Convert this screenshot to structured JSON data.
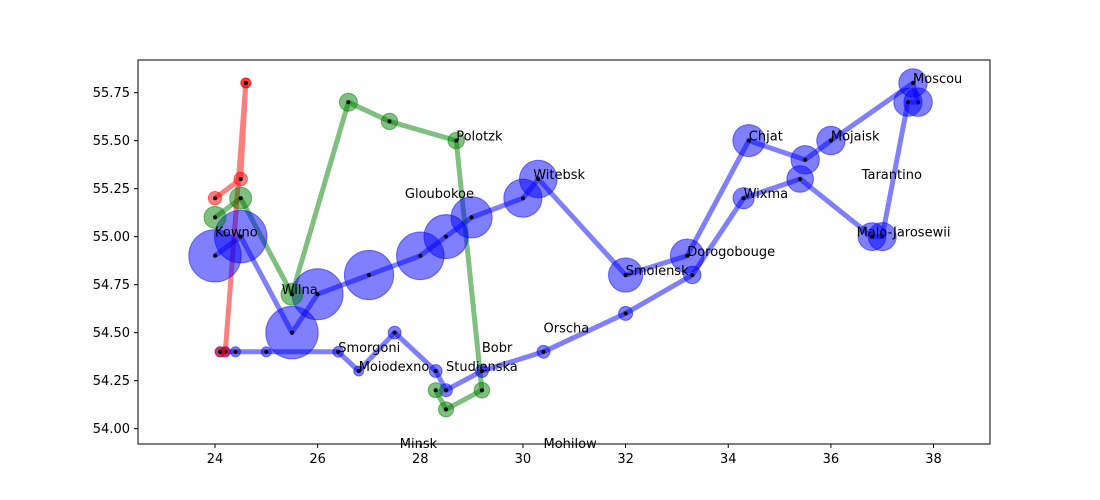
{
  "chart_data": {
    "type": "scatter",
    "xlim": [
      22.5,
      39.1
    ],
    "ylim": [
      53.92,
      55.92
    ],
    "grid": false,
    "legend": "none",
    "x_ticks": [
      24,
      26,
      28,
      30,
      32,
      34,
      36,
      38
    ],
    "y_ticks": [
      54.0,
      54.25,
      54.5,
      54.75,
      55.0,
      55.25,
      55.5,
      55.75
    ],
    "x_tick_labels": [
      "24",
      "26",
      "28",
      "30",
      "32",
      "34",
      "36",
      "38"
    ],
    "y_tick_labels": [
      "54.00",
      "54.25",
      "54.50",
      "54.75",
      "55.00",
      "55.25",
      "55.50",
      "55.75"
    ],
    "series": [
      {
        "color": "#0000ff",
        "points": [
          [
            24.0,
            54.9,
            340000
          ],
          [
            24.5,
            55.0,
            340000
          ],
          [
            25.5,
            54.5,
            340000
          ],
          [
            26.0,
            54.7,
            320000
          ],
          [
            27.0,
            54.8,
            300000
          ],
          [
            28.0,
            54.9,
            280000
          ],
          [
            28.5,
            55.0,
            240000
          ],
          [
            29.0,
            55.1,
            210000
          ],
          [
            30.0,
            55.2,
            180000
          ],
          [
            30.3,
            55.3,
            175000
          ],
          [
            32.0,
            54.8,
            145000
          ],
          [
            33.2,
            54.9,
            140000
          ],
          [
            34.4,
            55.5,
            127100
          ],
          [
            35.5,
            55.4,
            100000
          ],
          [
            36.0,
            55.5,
            100000
          ],
          [
            37.6,
            55.8,
            100000
          ],
          [
            37.7,
            55.7,
            100000
          ],
          [
            37.5,
            55.7,
            98000
          ],
          [
            37.0,
            55.0,
            97000
          ],
          [
            36.8,
            55.0,
            96000
          ],
          [
            35.4,
            55.3,
            87000
          ],
          [
            34.3,
            55.2,
            55000
          ],
          [
            33.3,
            54.8,
            37000
          ],
          [
            32.0,
            54.6,
            24000
          ],
          [
            30.4,
            54.4,
            20000
          ],
          [
            29.2,
            54.3,
            20000
          ],
          [
            28.5,
            54.2,
            20000
          ],
          [
            28.3,
            54.3,
            20000
          ],
          [
            27.5,
            54.5,
            20000
          ],
          [
            26.8,
            54.3,
            12000
          ],
          [
            26.4,
            54.4,
            14000
          ],
          [
            25.0,
            54.4,
            8000
          ],
          [
            24.4,
            54.4,
            4000
          ],
          [
            24.2,
            54.4,
            4000
          ],
          [
            24.1,
            54.4,
            4000
          ]
        ]
      },
      {
        "color": "#008000",
        "points": [
          [
            24.0,
            55.1,
            60000
          ],
          [
            24.5,
            55.2,
            60000
          ],
          [
            25.5,
            54.7,
            60000
          ],
          [
            26.6,
            55.7,
            40000
          ],
          [
            27.4,
            55.6,
            33000
          ],
          [
            28.7,
            55.5,
            33000
          ],
          [
            29.2,
            54.2,
            30000
          ],
          [
            28.5,
            54.1,
            28000
          ],
          [
            28.3,
            54.2,
            28000
          ]
        ]
      },
      {
        "color": "#ff0000",
        "points": [
          [
            24.0,
            55.2,
            22000
          ],
          [
            24.5,
            55.3,
            22000
          ],
          [
            24.6,
            55.8,
            6000
          ],
          [
            24.6,
            55.8,
            6000
          ],
          [
            24.2,
            54.4,
            6000
          ],
          [
            24.1,
            54.4,
            6000
          ]
        ]
      }
    ],
    "cities": [
      {
        "name": "Kowno",
        "x": 24.0,
        "y": 55.0
      },
      {
        "name": "Wilna",
        "x": 25.3,
        "y": 54.7
      },
      {
        "name": "Smorgoni",
        "x": 26.4,
        "y": 54.4
      },
      {
        "name": "Moiodexno",
        "x": 26.8,
        "y": 54.3
      },
      {
        "name": "Gloubokoe",
        "x": 27.7,
        "y": 55.2
      },
      {
        "name": "Minsk",
        "x": 27.6,
        "y": 53.9
      },
      {
        "name": "Studienska",
        "x": 28.5,
        "y": 54.3
      },
      {
        "name": "Polotzk",
        "x": 28.7,
        "y": 55.5
      },
      {
        "name": "Bobr",
        "x": 29.2,
        "y": 54.4
      },
      {
        "name": "Witebsk",
        "x": 30.2,
        "y": 55.3
      },
      {
        "name": "Orscha",
        "x": 30.4,
        "y": 54.5
      },
      {
        "name": "Mohilow",
        "x": 30.4,
        "y": 53.9
      },
      {
        "name": "Smolensk",
        "x": 32.0,
        "y": 54.8
      },
      {
        "name": "Dorogobouge",
        "x": 33.2,
        "y": 54.9
      },
      {
        "name": "Wixma",
        "x": 34.3,
        "y": 55.2
      },
      {
        "name": "Chjat",
        "x": 34.4,
        "y": 55.5
      },
      {
        "name": "Mojaisk",
        "x": 36.0,
        "y": 55.5
      },
      {
        "name": "Moscou",
        "x": 37.6,
        "y": 55.8
      },
      {
        "name": "Tarantino",
        "x": 36.6,
        "y": 55.3
      },
      {
        "name": "Malo-Jarosewii",
        "x": 36.5,
        "y": 55.0
      }
    ]
  }
}
